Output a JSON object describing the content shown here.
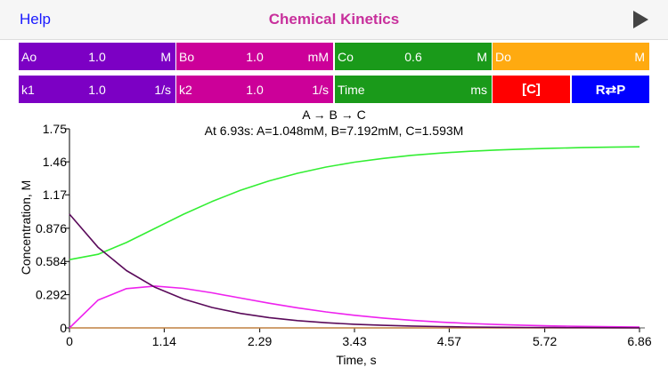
{
  "header": {
    "help": "Help",
    "title": "Chemical Kinetics",
    "play_icon": "play-icon"
  },
  "params": {
    "ao": {
      "label": "Ao",
      "value": "1.0",
      "unit": "M"
    },
    "bo": {
      "label": "Bo",
      "value": "1.0",
      "unit": "mM"
    },
    "co": {
      "label": "Co",
      "value": "0.6",
      "unit": "M"
    },
    "do": {
      "label": "Do",
      "value": "",
      "unit": "M"
    },
    "k1": {
      "label": "k1",
      "value": "1.0",
      "unit": "1/s"
    },
    "k2": {
      "label": "k2",
      "value": "1.0",
      "unit": "1/s"
    },
    "time": {
      "label": "Time",
      "value": "",
      "unit": "ms"
    },
    "conc_button": "[C]",
    "rp_button": "R⇄P"
  },
  "colors": {
    "purple": "#7c00c4",
    "magenta": "#cc0099",
    "green": "#1a9a1a",
    "orange": "#ffaa10",
    "red": "#ff0000",
    "blue": "#0000ff"
  },
  "chart_data": {
    "type": "line",
    "title": "A → B → C",
    "subtitle": "At 6.93s: A=1.048mM, B=7.192mM, C=1.593M",
    "xlabel": "Time, s",
    "ylabel": "Concentration, M",
    "xlim": [
      0,
      7.2
    ],
    "ylim": [
      0,
      1.75
    ],
    "xticks": [
      "0",
      "1.14",
      "2.29",
      "3.43",
      "4.57",
      "5.72",
      "6.86"
    ],
    "yticks": [
      "0",
      "0.292",
      "0.584",
      "0.876",
      "1.17",
      "1.46",
      "1.75"
    ],
    "grid": false,
    "x": [
      0,
      0.343,
      0.686,
      1.029,
      1.372,
      1.715,
      2.058,
      2.401,
      2.744,
      3.087,
      3.43,
      3.773,
      4.116,
      4.459,
      4.802,
      5.145,
      5.488,
      5.831,
      6.174,
      6.517,
      6.86
    ],
    "series": [
      {
        "color": "#5a0a5a",
        "values": [
          1,
          0.7096,
          0.5036,
          0.3574,
          0.2536,
          0.18,
          0.1277,
          0.0906,
          0.0643,
          0.0456,
          0.0324,
          0.023,
          0.0163,
          0.0116,
          0.0082,
          0.0058,
          0.0041,
          0.0029,
          0.0021,
          0.0015,
          0.001
        ]
      },
      {
        "color": "#ee22ee",
        "values": [
          0,
          0.2434,
          0.3455,
          0.3678,
          0.3479,
          0.3087,
          0.2628,
          0.2175,
          0.1764,
          0.1408,
          0.1111,
          0.0868,
          0.0671,
          0.0517,
          0.0394,
          0.0298,
          0.0225,
          0.0169,
          0.013,
          0.0098,
          0.0069
        ]
      },
      {
        "color": "#33ee33",
        "values": [
          0.6,
          0.647,
          0.751,
          0.875,
          0.999,
          1.111,
          1.21,
          1.292,
          1.359,
          1.414,
          1.457,
          1.49,
          1.517,
          1.537,
          1.552,
          1.564,
          1.573,
          1.58,
          1.585,
          1.589,
          1.592
        ]
      },
      {
        "color": "#c08040",
        "values": [
          0,
          0,
          0,
          0,
          0,
          0,
          0,
          0,
          0,
          0,
          0,
          0,
          0,
          0,
          0,
          0,
          0,
          0,
          0,
          0,
          0
        ]
      }
    ]
  }
}
